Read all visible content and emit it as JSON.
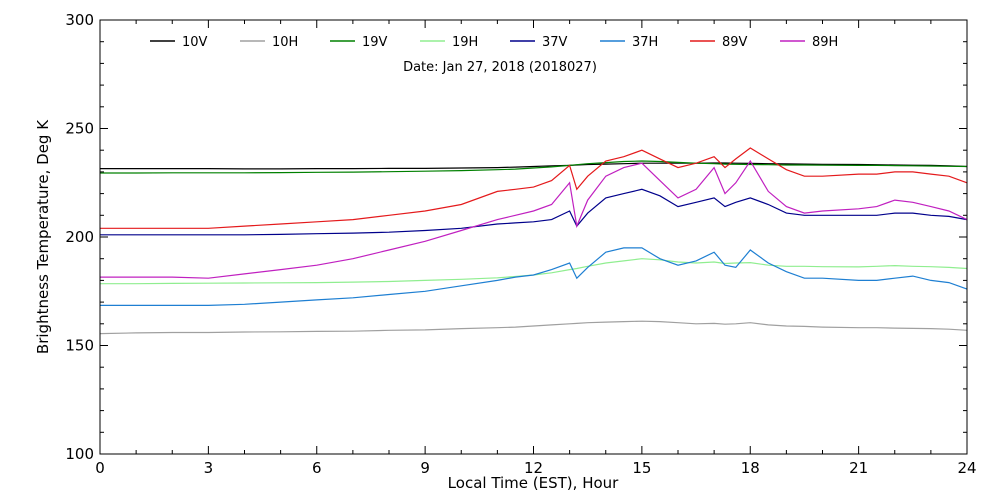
{
  "chart_data": {
    "type": "line",
    "title": "",
    "annotation": "Date: Jan 27, 2018 (2018027)",
    "xlabel": "Local Time (EST), Hour",
    "ylabel": "Brightness Temperature, Deg K",
    "xlim": [
      0,
      24
    ],
    "ylim": [
      100,
      300
    ],
    "xticks": [
      0,
      3,
      6,
      9,
      12,
      15,
      18,
      21,
      24
    ],
    "yticks": [
      100,
      150,
      200,
      250,
      300
    ],
    "grid": false,
    "legend_position": "top",
    "x": [
      0,
      1,
      2,
      3,
      4,
      5,
      6,
      7,
      8,
      9,
      10,
      11,
      11.5,
      12,
      12.5,
      13,
      13.2,
      13.5,
      14,
      14.5,
      15,
      15.5,
      16,
      16.5,
      17,
      17.3,
      17.6,
      18,
      18.5,
      19,
      19.5,
      20,
      21,
      21.5,
      22,
      22.5,
      23,
      23.5,
      24
    ],
    "series": [
      {
        "name": "10V",
        "color": "#000000",
        "values": [
          231.5,
          231.5,
          231.5,
          231.5,
          231.4,
          231.4,
          231.5,
          231.5,
          231.6,
          231.6,
          231.8,
          232,
          232.2,
          232.5,
          232.8,
          233,
          233.2,
          233.4,
          233.6,
          233.8,
          234,
          234,
          234,
          234,
          234.1,
          234.1,
          234,
          233.9,
          233.8,
          233.7,
          233.6,
          233.5,
          233.4,
          233.3,
          233.2,
          233.1,
          233,
          232.8,
          232.5
        ]
      },
      {
        "name": "10H",
        "color": "#a0a0a0",
        "values": [
          155.5,
          155.8,
          156,
          156,
          156.2,
          156.3,
          156.5,
          156.6,
          157,
          157.2,
          157.8,
          158.2,
          158.5,
          159,
          159.5,
          160,
          160.2,
          160.5,
          160.8,
          161,
          161.2,
          161,
          160.5,
          160,
          160.2,
          159.8,
          160,
          160.5,
          159.5,
          159,
          158.8,
          158.5,
          158.2,
          158.2,
          158,
          157.9,
          157.8,
          157.5,
          157
        ]
      },
      {
        "name": "19V",
        "color": "#008000",
        "values": [
          229.5,
          229.5,
          229.6,
          229.6,
          229.6,
          229.7,
          229.8,
          229.9,
          230.1,
          230.3,
          230.6,
          231,
          231.3,
          231.8,
          232.3,
          233,
          233.3,
          233.8,
          234.3,
          234.8,
          235,
          234.8,
          234.4,
          234,
          233.8,
          233.6,
          233.5,
          233.4,
          233.3,
          233.2,
          233.2,
          233.1,
          233,
          233,
          232.9,
          232.8,
          232.7,
          232.6,
          232.5
        ]
      },
      {
        "name": "19H",
        "color": "#90ee90",
        "values": [
          178.5,
          178.5,
          178.6,
          178.7,
          178.8,
          178.9,
          179,
          179.2,
          179.5,
          180,
          180.5,
          181.2,
          181.8,
          182.5,
          183.5,
          185,
          185.5,
          186.5,
          188,
          189,
          190,
          189.5,
          188.5,
          188,
          188.5,
          187.8,
          188,
          188.2,
          187,
          186.5,
          186.5,
          186.3,
          186.2,
          186.5,
          186.8,
          186.5,
          186.3,
          186,
          185.5
        ]
      },
      {
        "name": "37V",
        "color": "#00008b",
        "values": [
          201,
          201,
          201,
          201,
          201,
          201.2,
          201.5,
          201.8,
          202.2,
          203,
          204,
          206,
          206.5,
          207,
          208,
          212,
          205,
          211,
          218,
          220,
          222,
          219,
          214,
          216,
          218,
          214,
          216,
          218,
          215,
          211,
          210,
          210,
          210,
          210,
          211,
          211,
          210,
          209.5,
          208
        ]
      },
      {
        "name": "37H",
        "color": "#1e7fd2",
        "values": [
          168.5,
          168.5,
          168.5,
          168.5,
          169,
          170,
          171,
          172,
          173.5,
          175,
          177.5,
          180,
          181.5,
          182.5,
          185,
          188,
          181,
          186,
          193,
          195,
          195,
          190,
          187,
          189,
          193,
          187,
          186,
          194,
          188,
          184,
          181,
          181,
          180,
          180,
          181,
          182,
          180,
          179,
          176
        ]
      },
      {
        "name": "89V",
        "color": "#e41a1c",
        "values": [
          204,
          204,
          204,
          204,
          205,
          206,
          207,
          208,
          210,
          212,
          215,
          221,
          222,
          223,
          226,
          233,
          222,
          228,
          235,
          237,
          240,
          236,
          232,
          234,
          237,
          232,
          236,
          241,
          236,
          231,
          228,
          228,
          229,
          229,
          230,
          230,
          229,
          228,
          225
        ]
      },
      {
        "name": "89H",
        "color": "#c020c0",
        "values": [
          181.5,
          181.5,
          181.5,
          181,
          183,
          185,
          187,
          190,
          194,
          198,
          203,
          208,
          210,
          212,
          215,
          225,
          205,
          217,
          228,
          232,
          234,
          226,
          218,
          222,
          232,
          220,
          225,
          235,
          221,
          214,
          211,
          212,
          213,
          214,
          217,
          216,
          214,
          212,
          208
        ]
      }
    ]
  }
}
